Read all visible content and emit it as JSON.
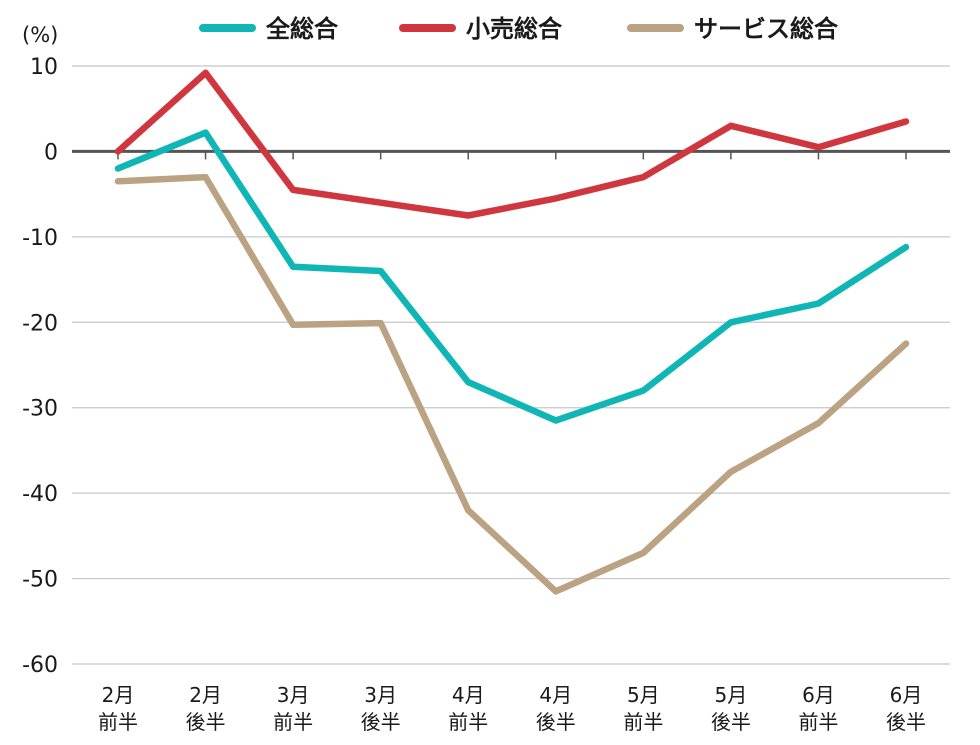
{
  "chart_data": {
    "type": "line",
    "unit_label": "(%)",
    "categories": [
      [
        "2月",
        "前半"
      ],
      [
        "2月",
        "後半"
      ],
      [
        "3月",
        "前半"
      ],
      [
        "3月",
        "後半"
      ],
      [
        "4月",
        "前半"
      ],
      [
        "4月",
        "後半"
      ],
      [
        "5月",
        "前半"
      ],
      [
        "5月",
        "後半"
      ],
      [
        "6月",
        "前半"
      ],
      [
        "6月",
        "後半"
      ]
    ],
    "series": [
      {
        "name": "全総合",
        "color": "#10b5b5",
        "values": [
          -2.0,
          2.2,
          -13.5,
          -14.0,
          -27.0,
          -31.5,
          -28.0,
          -20.0,
          -17.8,
          -11.2
        ]
      },
      {
        "name": "小売総合",
        "color": "#d0363e",
        "values": [
          0.0,
          9.2,
          -4.5,
          -6.0,
          -7.5,
          -5.5,
          -3.0,
          3.0,
          0.5,
          3.5
        ]
      },
      {
        "name": "サービス総合",
        "color": "#bba283",
        "values": [
          -3.5,
          -3.0,
          -20.3,
          -20.1,
          -42.0,
          -51.5,
          -47.0,
          -37.5,
          -31.8,
          -22.5
        ]
      }
    ],
    "ylim": [
      -60,
      10
    ],
    "yticks": [
      10,
      0,
      -10,
      -20,
      -30,
      -40,
      -50,
      -60
    ],
    "grid": true,
    "legend_position": "top",
    "zero_line_color": "#555555",
    "grid_color": "#c8c8c8"
  }
}
